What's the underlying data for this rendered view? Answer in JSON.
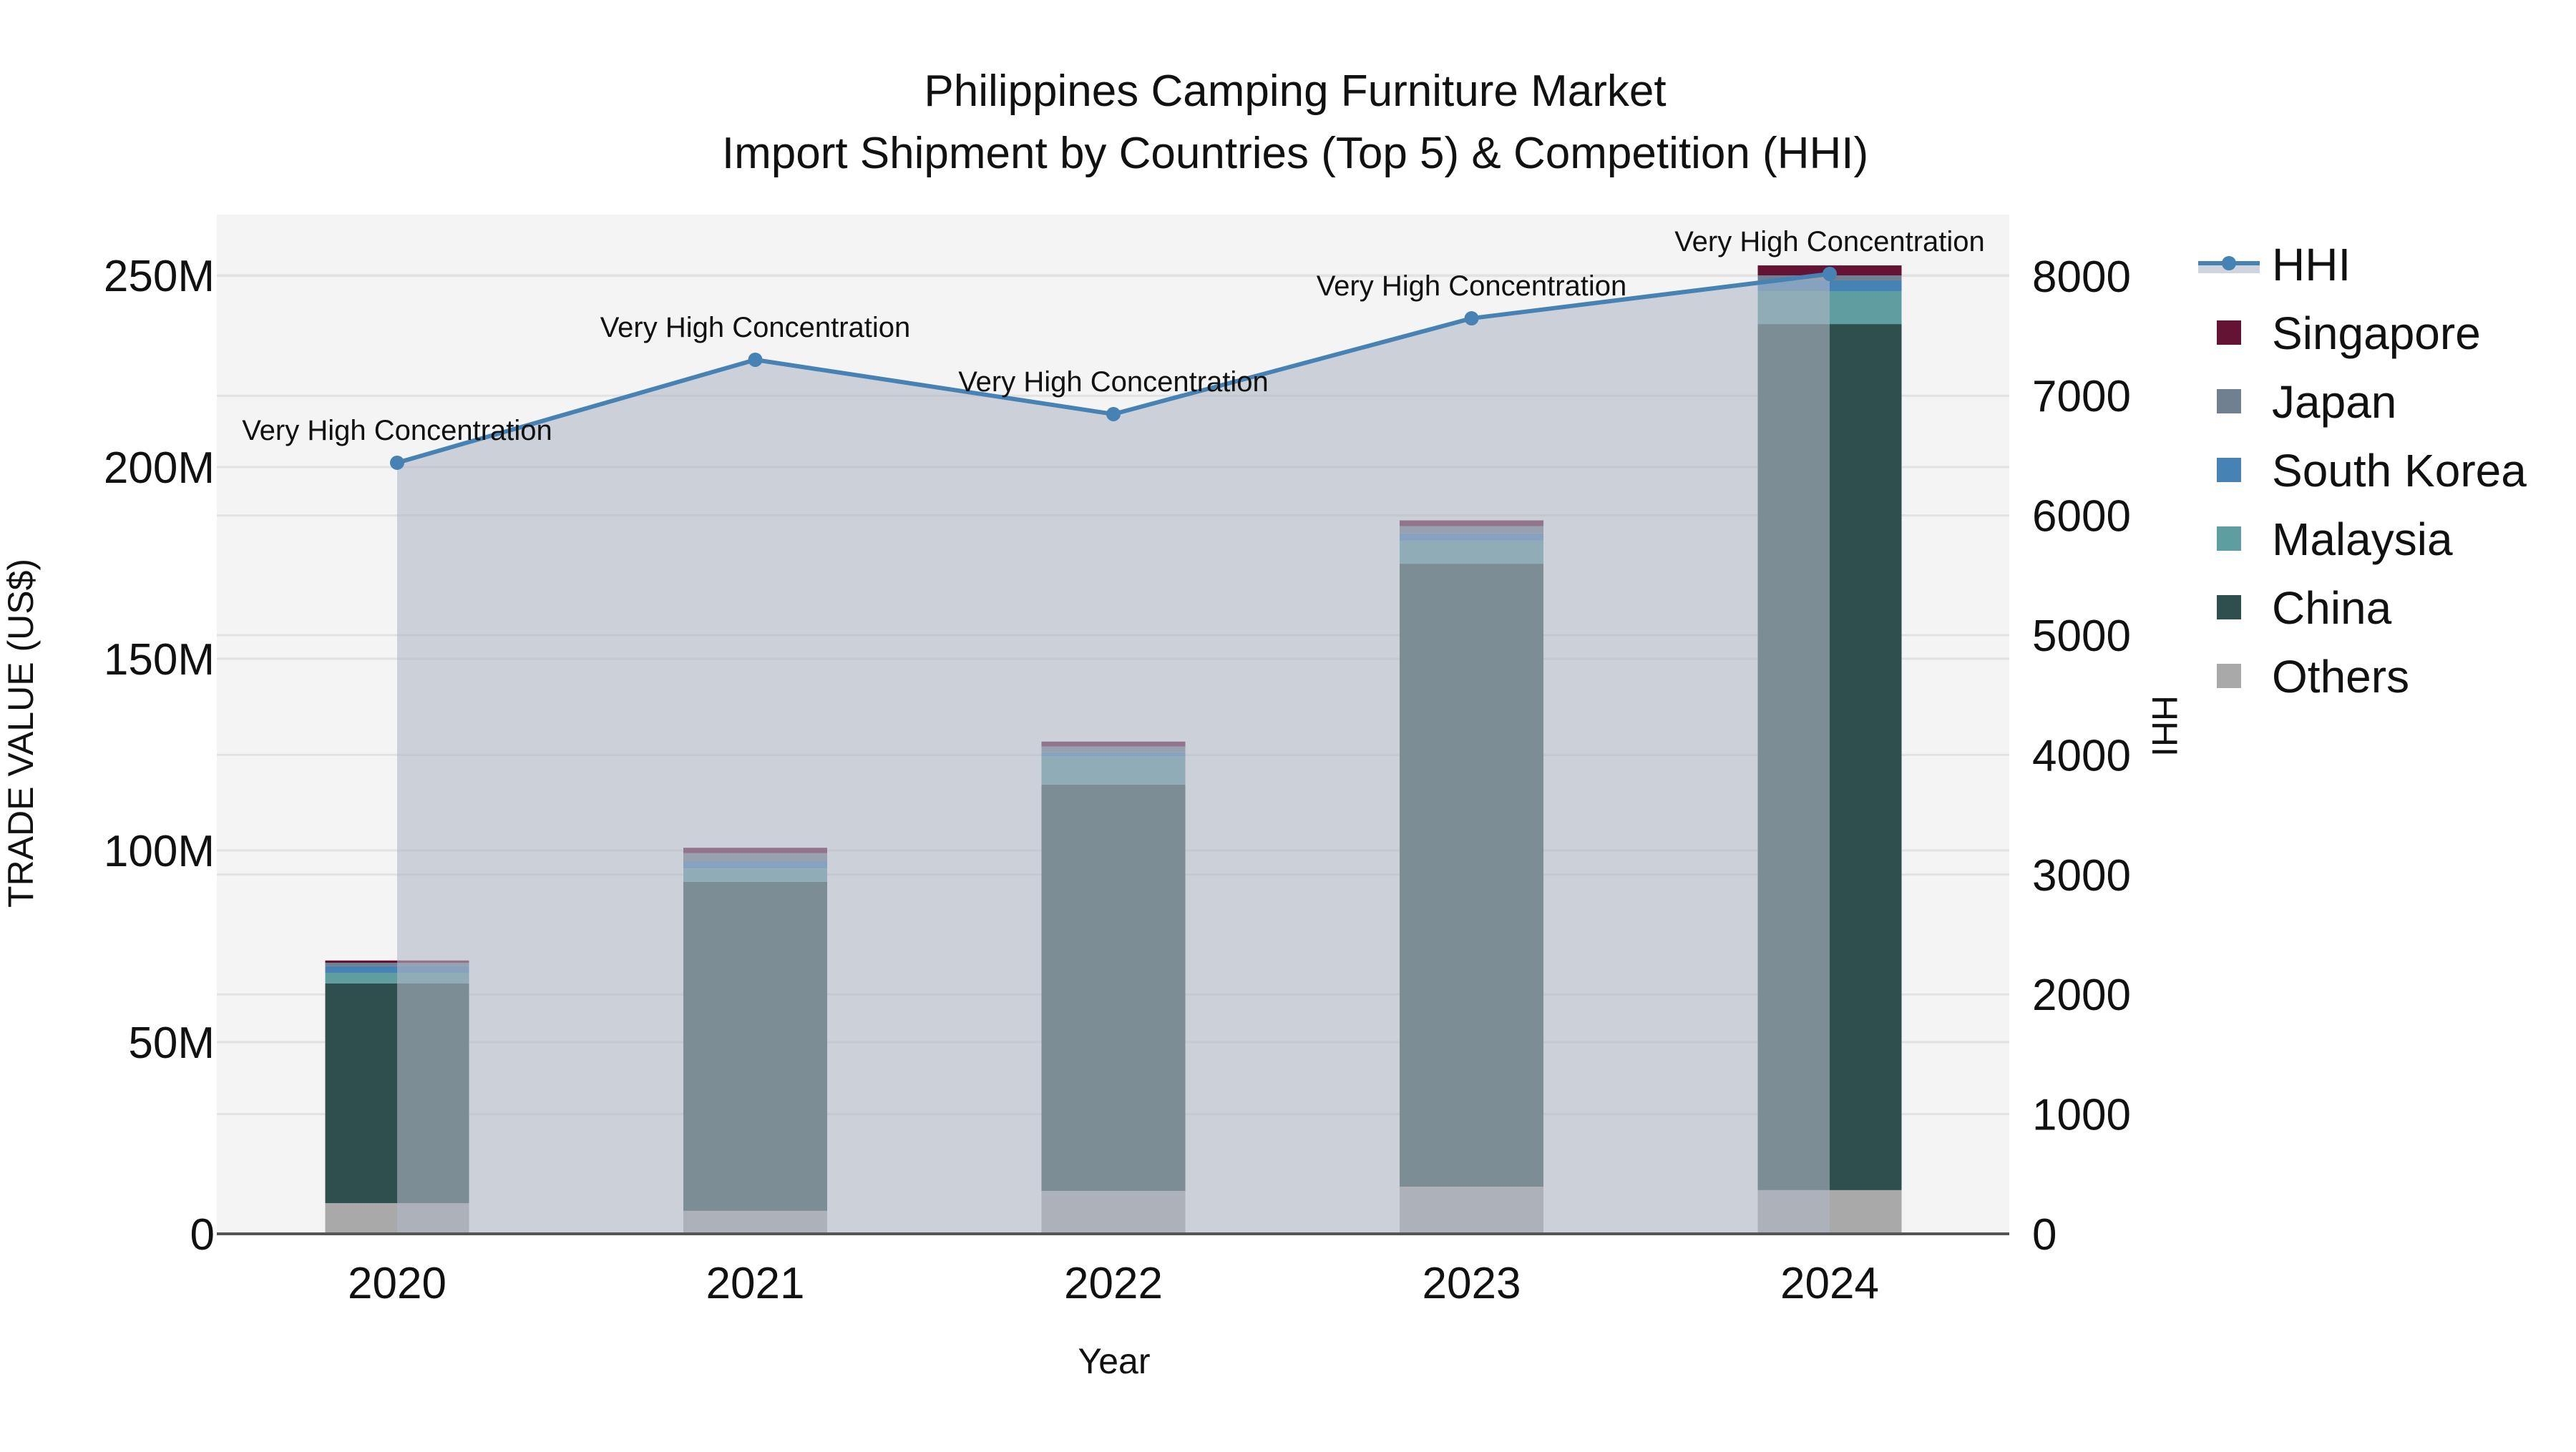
{
  "title": {
    "line1": "Philippines Camping Furniture Market",
    "line2": "Import Shipment by Countries (Top 5) & Competition (HHI)"
  },
  "axes": {
    "x_title": "Year",
    "y_left_title": "TRADE VALUE (US$)",
    "y_right_title": "HHI",
    "y_left_ticks": [
      "0",
      "50M",
      "100M",
      "150M",
      "200M",
      "250M"
    ],
    "y_right_ticks": [
      "0",
      "1000",
      "2000",
      "3000",
      "4000",
      "5000",
      "6000",
      "7000",
      "8000"
    ],
    "x_ticks": [
      "2020",
      "2021",
      "2022",
      "2023",
      "2024"
    ]
  },
  "legend": {
    "items": [
      {
        "label": "HHI",
        "type": "line",
        "color": "#4682b4"
      },
      {
        "label": "Singapore",
        "type": "square",
        "color": "#641335"
      },
      {
        "label": "Japan",
        "type": "square",
        "color": "#708090"
      },
      {
        "label": "South Korea",
        "type": "square",
        "color": "#4682b4"
      },
      {
        "label": "Malaysia",
        "type": "square",
        "color": "#5f9ea0"
      },
      {
        "label": "China",
        "type": "square",
        "color": "#2f4f4f"
      },
      {
        "label": "Others",
        "type": "square",
        "color": "#a9a9a9"
      }
    ]
  },
  "annotations": [
    {
      "year": "2020",
      "text": "Very High Concentration"
    },
    {
      "year": "2021",
      "text": "Very High Concentration"
    },
    {
      "year": "2022",
      "text": "Very High Concentration"
    },
    {
      "year": "2023",
      "text": "Very High Concentration"
    },
    {
      "year": "2024",
      "text": "Very High Concentration"
    }
  ],
  "colors": {
    "plot_bg": "#f4f4f4",
    "grid": "#e2e2e2",
    "hhi_line": "#4682b4",
    "hhi_fill": "rgba(176,184,198,0.6)",
    "axis_line": "#555555"
  },
  "chart_data": {
    "type": "bar",
    "stacked": true,
    "title": "Philippines Camping Furniture Market — Import Shipment by Countries (Top 5) & Competition (HHI)",
    "xlabel": "Year",
    "ylabel": "TRADE VALUE (US$)",
    "y2label": "HHI",
    "categories": [
      "2020",
      "2021",
      "2022",
      "2023",
      "2024"
    ],
    "ylim": [
      0,
      265000000
    ],
    "y2lim": [
      0,
      8480
    ],
    "grid": true,
    "legend_position": "right",
    "series": [
      {
        "name": "Others",
        "color": "#a9a9a9",
        "values": [
          8000000,
          6000000,
          11200000,
          12300000,
          11400000
        ]
      },
      {
        "name": "China",
        "color": "#2f4f4f",
        "values": [
          57300000,
          85800000,
          106000000,
          162500000,
          225900000
        ]
      },
      {
        "name": "Malaysia",
        "color": "#5f9ea0",
        "values": [
          2800000,
          3500000,
          7300000,
          6000000,
          8600000
        ]
      },
      {
        "name": "South Korea",
        "color": "#4682b4",
        "values": [
          1700000,
          1900000,
          1100000,
          1900000,
          2800000
        ]
      },
      {
        "name": "Japan",
        "color": "#708090",
        "values": [
          900000,
          2100000,
          1500000,
          1900000,
          1300000
        ]
      },
      {
        "name": "Singapore",
        "color": "#641335",
        "values": [
          600000,
          1400000,
          1300000,
          1500000,
          2600000
        ]
      }
    ],
    "line_series": {
      "name": "HHI",
      "axis": "y2",
      "type": "line+area",
      "color": "#4682b4",
      "values": [
        6440,
        7300,
        6846,
        7646,
        8017
      ],
      "labels": [
        "Very High Concentration",
        "Very High Concentration",
        "Very High Concentration",
        "Very High Concentration",
        "Very High Concentration"
      ]
    }
  }
}
